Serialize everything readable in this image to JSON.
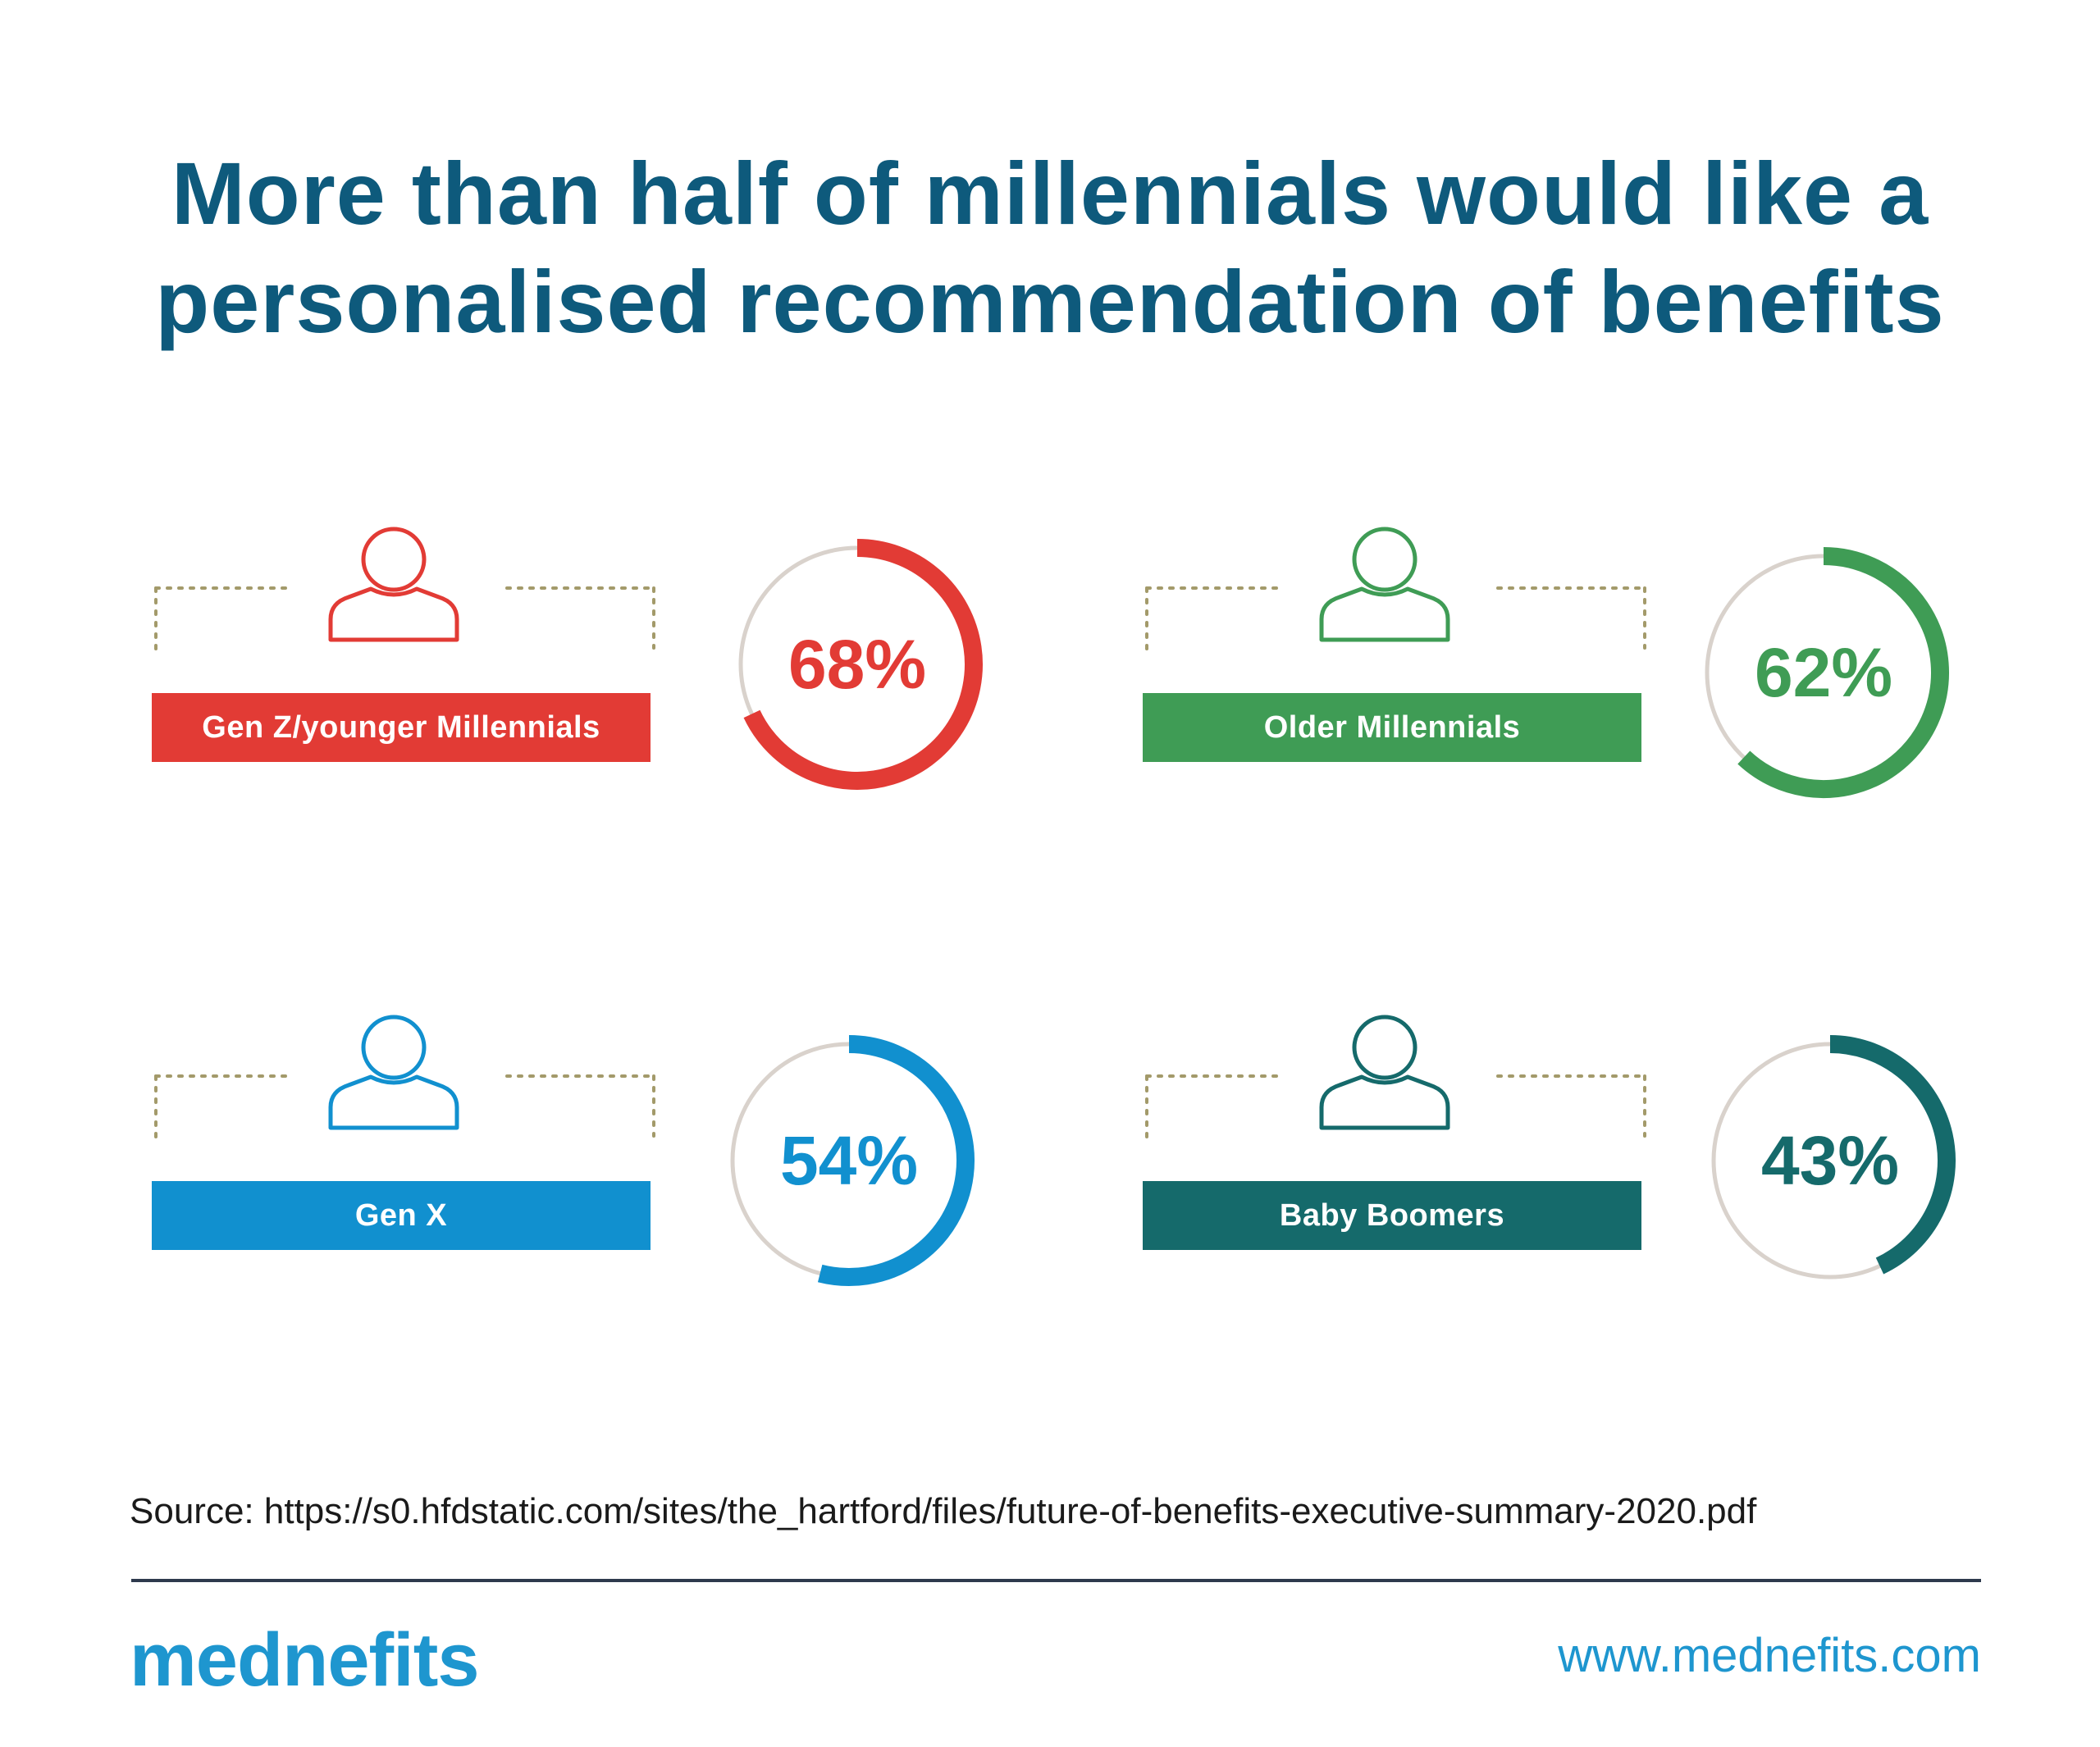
{
  "title": {
    "line1": "More than half of millennials would like a",
    "line2": "personalised recommendation of benefits"
  },
  "chart_data": {
    "type": "donut",
    "unit": "%",
    "items": [
      {
        "label": "Gen Z/younger Millennials",
        "value": 68,
        "display": "68%",
        "color": "#e23b35"
      },
      {
        "label": "Older Millennials",
        "value": 62,
        "display": "62%",
        "color": "#3f9c55"
      },
      {
        "label": "Gen X",
        "value": 54,
        "display": "54%",
        "color": "#1190cf"
      },
      {
        "label": "Baby Boomers",
        "value": 43,
        "display": "43%",
        "color": "#156a6b"
      }
    ],
    "track_color": "#d9d2cc",
    "bracket_color": "#a39a6a",
    "icon": "person-outline-icon"
  },
  "footer": {
    "source": "Source: https://s0.hfdstatic.com/sites/the_hartford/files/future-of-benefits-executive-summary-2020.pdf",
    "logo_text": "mednefits",
    "website": "www.mednefits.com"
  }
}
